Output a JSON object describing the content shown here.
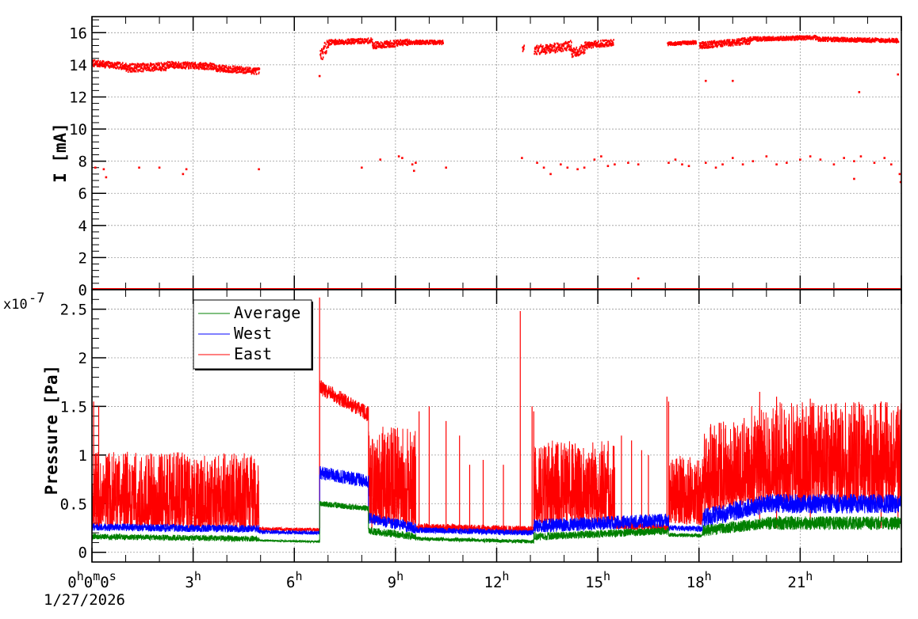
{
  "chart_data": [
    {
      "type": "scatter",
      "panel": "current",
      "ylabel": "I [mA]",
      "ylim": [
        0,
        17
      ],
      "yticks": [
        "0",
        "2",
        "4",
        "6",
        "8",
        "10",
        "12",
        "14",
        "16"
      ],
      "xlim_hours": [
        0,
        24
      ],
      "grid": true,
      "series": [
        {
          "color": "#ff0000",
          "segments": [
            {
              "x_start": 0.0,
              "x_end": 1.0,
              "y_start": 14.1,
              "y_end": 13.9,
              "noise": 0.2
            },
            {
              "x_start": 1.0,
              "x_end": 2.2,
              "y_start": 13.8,
              "y_end": 13.9,
              "noise": 0.25
            },
            {
              "x_start": 2.2,
              "x_end": 3.6,
              "y_start": 14.0,
              "y_end": 13.9,
              "noise": 0.2
            },
            {
              "x_start": 3.6,
              "x_end": 4.95,
              "y_start": 13.8,
              "y_end": 13.6,
              "noise": 0.2
            },
            {
              "x_start": 6.75,
              "x_end": 7.0,
              "y_start": 14.5,
              "y_end": 15.4,
              "noise": 0.4
            },
            {
              "x_start": 7.0,
              "x_end": 8.3,
              "y_start": 15.4,
              "y_end": 15.5,
              "noise": 0.15
            },
            {
              "x_start": 8.3,
              "x_end": 9.4,
              "y_start": 15.2,
              "y_end": 15.4,
              "noise": 0.2
            },
            {
              "x_start": 9.4,
              "x_end": 10.4,
              "y_start": 15.4,
              "y_end": 15.4,
              "noise": 0.12
            },
            {
              "x_start": 12.75,
              "x_end": 12.8,
              "y_start": 15.0,
              "y_end": 15.2,
              "noise": 0.2
            },
            {
              "x_start": 13.1,
              "x_end": 14.2,
              "y_start": 14.9,
              "y_end": 15.2,
              "noise": 0.3
            },
            {
              "x_start": 14.2,
              "x_end": 14.6,
              "y_start": 14.7,
              "y_end": 15.0,
              "noise": 0.3
            },
            {
              "x_start": 14.6,
              "x_end": 15.45,
              "y_start": 15.2,
              "y_end": 15.4,
              "noise": 0.2
            },
            {
              "x_start": 17.05,
              "x_end": 17.9,
              "y_start": 15.3,
              "y_end": 15.4,
              "noise": 0.1
            },
            {
              "x_start": 18.0,
              "x_end": 19.5,
              "y_start": 15.2,
              "y_end": 15.5,
              "noise": 0.2
            },
            {
              "x_start": 19.5,
              "x_end": 21.5,
              "y_start": 15.6,
              "y_end": 15.7,
              "noise": 0.12
            },
            {
              "x_start": 21.5,
              "x_end": 23.9,
              "y_start": 15.6,
              "y_end": 15.5,
              "noise": 0.12
            }
          ],
          "low_points": [
            [
              0.1,
              7.6
            ],
            [
              0.35,
              7.5
            ],
            [
              0.42,
              7.0
            ],
            [
              1.4,
              7.6
            ],
            [
              2.0,
              7.6
            ],
            [
              2.7,
              7.2
            ],
            [
              2.8,
              7.5
            ],
            [
              4.95,
              7.5
            ],
            [
              8.0,
              7.6
            ],
            [
              8.55,
              8.1
            ],
            [
              9.1,
              8.3
            ],
            [
              9.2,
              8.2
            ],
            [
              9.5,
              7.8
            ],
            [
              9.55,
              7.4
            ],
            [
              9.6,
              7.9
            ],
            [
              10.5,
              7.6
            ],
            [
              12.75,
              8.2
            ],
            [
              13.2,
              7.9
            ],
            [
              13.4,
              7.6
            ],
            [
              13.6,
              7.2
            ],
            [
              13.9,
              7.8
            ],
            [
              14.1,
              7.6
            ],
            [
              14.4,
              7.5
            ],
            [
              14.6,
              7.6
            ],
            [
              14.9,
              8.1
            ],
            [
              15.1,
              8.3
            ],
            [
              15.3,
              7.7
            ],
            [
              15.5,
              7.8
            ],
            [
              15.9,
              7.9
            ],
            [
              16.2,
              7.8
            ],
            [
              17.1,
              7.9
            ],
            [
              17.3,
              8.1
            ],
            [
              17.5,
              7.8
            ],
            [
              17.7,
              7.7
            ],
            [
              18.2,
              7.9
            ],
            [
              18.5,
              7.6
            ],
            [
              18.7,
              7.8
            ],
            [
              19.0,
              8.2
            ],
            [
              19.3,
              7.8
            ],
            [
              19.6,
              8.0
            ],
            [
              20.0,
              8.3
            ],
            [
              20.3,
              7.8
            ],
            [
              20.6,
              7.9
            ],
            [
              21.0,
              8.1
            ],
            [
              21.3,
              8.3
            ],
            [
              21.6,
              8.1
            ],
            [
              22.0,
              7.8
            ],
            [
              22.3,
              8.2
            ],
            [
              22.6,
              8.0
            ],
            [
              22.8,
              8.3
            ],
            [
              23.2,
              7.9
            ],
            [
              23.5,
              8.2
            ],
            [
              23.7,
              7.8
            ],
            [
              23.95,
              7.2
            ],
            [
              23.98,
              6.7
            ],
            [
              22.6,
              6.9
            ],
            [
              23.9,
              13.4
            ],
            [
              22.75,
              12.3
            ],
            [
              18.2,
              13.0
            ],
            [
              19.0,
              13.0
            ],
            [
              6.75,
              13.3
            ],
            [
              16.2,
              0.7
            ]
          ],
          "zero_line": true
        }
      ]
    },
    {
      "type": "line",
      "panel": "pressure",
      "ylabel": "Pressure [Pa]",
      "exponent_label": "x10",
      "exponent_power": "-7",
      "ylim": [
        -0.1,
        2.7
      ],
      "yticks": [
        "0",
        "0.5",
        "1",
        "1.5",
        "2",
        "2.5"
      ],
      "xlim_hours": [
        0,
        24
      ],
      "xticks": [
        "0h0m0s",
        "3h",
        "6h",
        "9h",
        "12h",
        "15h",
        "18h",
        "21h"
      ],
      "date_label": "1/27/2026",
      "grid": true,
      "legend": "top-left",
      "series": [
        {
          "name": "Average",
          "color": "#008000",
          "segments": [
            {
              "x_start": 0.0,
              "x_end": 4.95,
              "y_start": 0.16,
              "y_end": 0.14,
              "noise": 0.03
            },
            {
              "x_start": 4.95,
              "x_end": 6.75,
              "y_start": 0.12,
              "y_end": 0.11,
              "noise": 0.01
            },
            {
              "x_start": 6.75,
              "x_end": 8.2,
              "y_start": 0.5,
              "y_end": 0.45,
              "noise": 0.03
            },
            {
              "x_start": 8.2,
              "x_end": 9.6,
              "y_start": 0.22,
              "y_end": 0.16,
              "noise": 0.04
            },
            {
              "x_start": 9.6,
              "x_end": 13.1,
              "y_start": 0.14,
              "y_end": 0.11,
              "noise": 0.02
            },
            {
              "x_start": 13.1,
              "x_end": 17.1,
              "y_start": 0.16,
              "y_end": 0.22,
              "noise": 0.04
            },
            {
              "x_start": 17.1,
              "x_end": 18.1,
              "y_start": 0.18,
              "y_end": 0.17,
              "noise": 0.02
            },
            {
              "x_start": 18.1,
              "x_end": 20.0,
              "y_start": 0.22,
              "y_end": 0.3,
              "noise": 0.06
            },
            {
              "x_start": 20.0,
              "x_end": 24.0,
              "y_start": 0.3,
              "y_end": 0.3,
              "noise": 0.07
            }
          ]
        },
        {
          "name": "West",
          "color": "#0000ff",
          "segments": [
            {
              "x_start": 0.0,
              "x_end": 4.95,
              "y_start": 0.26,
              "y_end": 0.24,
              "noise": 0.04
            },
            {
              "x_start": 4.95,
              "x_end": 6.75,
              "y_start": 0.21,
              "y_end": 0.2,
              "noise": 0.02
            },
            {
              "x_start": 6.75,
              "x_end": 8.2,
              "y_start": 0.82,
              "y_end": 0.73,
              "noise": 0.07
            },
            {
              "x_start": 8.2,
              "x_end": 9.6,
              "y_start": 0.35,
              "y_end": 0.25,
              "noise": 0.06
            },
            {
              "x_start": 9.6,
              "x_end": 13.1,
              "y_start": 0.23,
              "y_end": 0.2,
              "noise": 0.03
            },
            {
              "x_start": 13.1,
              "x_end": 17.1,
              "y_start": 0.27,
              "y_end": 0.33,
              "noise": 0.07
            },
            {
              "x_start": 17.1,
              "x_end": 18.1,
              "y_start": 0.25,
              "y_end": 0.24,
              "noise": 0.03
            },
            {
              "x_start": 18.1,
              "x_end": 20.0,
              "y_start": 0.35,
              "y_end": 0.5,
              "noise": 0.1
            },
            {
              "x_start": 20.0,
              "x_end": 24.0,
              "y_start": 0.5,
              "y_end": 0.5,
              "noise": 0.1
            }
          ]
        },
        {
          "name": "East",
          "color": "#ff0000",
          "segments": [
            {
              "x_start": 0.0,
              "x_end": 4.95,
              "y_start": 0.26,
              "y_end": 0.24,
              "noise": 0.78
            },
            {
              "x_start": 4.95,
              "x_end": 6.75,
              "y_start": 0.24,
              "y_end": 0.23,
              "noise": 0.02
            },
            {
              "x_start": 6.75,
              "x_end": 8.2,
              "y_start": 1.7,
              "y_end": 1.42,
              "noise": 0.08
            },
            {
              "x_start": 8.2,
              "x_end": 9.6,
              "y_start": 0.3,
              "y_end": 0.28,
              "noise": 1.0
            },
            {
              "x_start": 9.6,
              "x_end": 13.1,
              "y_start": 0.26,
              "y_end": 0.23,
              "noise": 0.04
            },
            {
              "x_start": 13.1,
              "x_end": 15.5,
              "y_start": 0.3,
              "y_end": 0.3,
              "noise": 0.85
            },
            {
              "x_start": 15.5,
              "x_end": 17.1,
              "y_start": 0.28,
              "y_end": 0.25,
              "noise": 0.04
            },
            {
              "x_start": 17.1,
              "x_end": 18.1,
              "y_start": 0.3,
              "y_end": 0.28,
              "noise": 0.7
            },
            {
              "x_start": 18.1,
              "x_end": 19.5,
              "y_start": 0.4,
              "y_end": 0.5,
              "noise": 0.9
            },
            {
              "x_start": 19.5,
              "x_end": 24.0,
              "y_start": 0.5,
              "y_end": 0.5,
              "noise": 1.05
            }
          ],
          "spikes": [
            [
              0.05,
              1.55
            ],
            [
              0.2,
              1.5
            ],
            [
              6.75,
              2.62
            ],
            [
              8.3,
              1.0
            ],
            [
              9.7,
              1.45
            ],
            [
              10.0,
              1.5
            ],
            [
              10.5,
              1.35
            ],
            [
              10.9,
              1.2
            ],
            [
              11.2,
              0.9
            ],
            [
              11.6,
              0.95
            ],
            [
              12.2,
              0.9
            ],
            [
              12.7,
              2.48
            ],
            [
              13.05,
              1.5
            ],
            [
              13.1,
              1.45
            ],
            [
              15.7,
              1.2
            ],
            [
              16.0,
              1.15
            ],
            [
              16.3,
              1.05
            ],
            [
              16.5,
              1.0
            ],
            [
              17.05,
              1.6
            ],
            [
              17.1,
              1.55
            ],
            [
              19.8,
              1.65
            ],
            [
              20.3,
              1.6
            ],
            [
              21.3,
              1.58
            ],
            [
              23.4,
              1.55
            ],
            [
              23.9,
              1.5
            ]
          ]
        }
      ]
    }
  ]
}
